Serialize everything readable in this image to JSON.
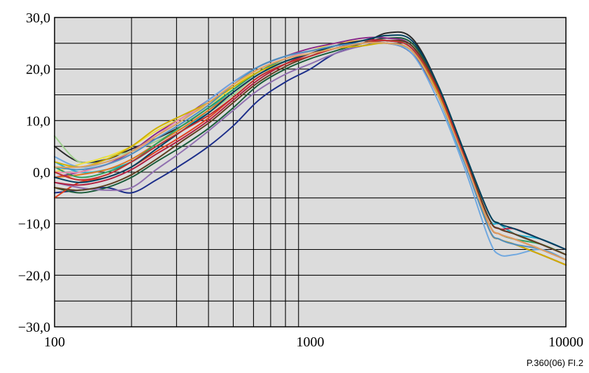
{
  "figure_ref": "P.360(06)  FI.2",
  "chart_data": {
    "type": "line",
    "title": "",
    "xlabel": "",
    "ylabel": "",
    "x_scale": "log",
    "xlim": [
      100,
      10000
    ],
    "ylim": [
      -30,
      30
    ],
    "grid": true,
    "legend": "none",
    "background_color": "#dcdcdc",
    "x_ticks": [
      {
        "value": 100,
        "label": "100"
      },
      {
        "value": 1000,
        "label": "1000"
      },
      {
        "value": 10000,
        "label": "10000"
      }
    ],
    "y_ticks": [
      {
        "value": 30,
        "label": "30,0"
      },
      {
        "value": 20,
        "label": "20,0"
      },
      {
        "value": 10,
        "label": "10,0"
      },
      {
        "value": 0,
        "label": "0,0"
      },
      {
        "value": -10,
        "label": "−10,0"
      },
      {
        "value": -20,
        "label": "−20,0"
      },
      {
        "value": -30,
        "label": "−30,0"
      }
    ],
    "x": [
      100,
      125,
      160,
      200,
      250,
      315,
      400,
      500,
      630,
      800,
      1000,
      1250,
      1600,
      2000,
      2500,
      3150,
      4000,
      5000,
      5500,
      6300,
      8000,
      10000
    ],
    "series": [
      {
        "color": "#1c2e8a",
        "values": [
          -4,
          -3.5,
          -3,
          -4,
          -1.5,
          1.5,
          5,
          9,
          14,
          17.5,
          20,
          23,
          24.5,
          25,
          23,
          15,
          3,
          -11,
          -13,
          -14,
          -16,
          -18
        ]
      },
      {
        "color": "#2a2a2a",
        "values": [
          5,
          2,
          2.5,
          4.5,
          6.5,
          9,
          12.5,
          16,
          19.5,
          21.5,
          23,
          24.5,
          25,
          27,
          26,
          17,
          3,
          -9,
          -11,
          -12,
          -14,
          -16
        ]
      },
      {
        "color": "#1a5c3a",
        "values": [
          -3,
          -4,
          -3,
          -1,
          2,
          5,
          8.5,
          12.5,
          17,
          20,
          22,
          23.5,
          25,
          26,
          25,
          17,
          4,
          -8,
          -10,
          -12,
          -14,
          -16
        ]
      },
      {
        "color": "#a0d090",
        "values": [
          7,
          2,
          3,
          4,
          6,
          8.5,
          11.5,
          15,
          19,
          21,
          23,
          24,
          25,
          25.5,
          24,
          15,
          3,
          -10,
          -12,
          -13,
          -15,
          -17
        ]
      },
      {
        "color": "#f0e040",
        "values": [
          0,
          1.5,
          3,
          5,
          8,
          10.5,
          13,
          16.5,
          20,
          22,
          23.5,
          25,
          25.5,
          25.5,
          24,
          16,
          3,
          -10,
          -12,
          -13,
          -15,
          -17
        ]
      },
      {
        "color": "#8a2a8a",
        "values": [
          -1,
          0,
          1.5,
          4,
          7.5,
          10.5,
          14,
          17.5,
          20.5,
          22.5,
          24,
          25,
          26,
          26,
          24.5,
          16,
          3,
          -9,
          -11,
          -12,
          -14,
          -16
        ]
      },
      {
        "color": "#e04020",
        "values": [
          -5,
          -2,
          -1,
          1,
          4,
          7,
          10.5,
          14.5,
          18.5,
          21,
          22.5,
          24,
          25,
          25.5,
          24,
          16,
          3,
          -11,
          -13,
          -14,
          -16,
          -18
        ]
      },
      {
        "color": "#20b0d0",
        "values": [
          2,
          0,
          0.5,
          2,
          5,
          8,
          12,
          16,
          19.5,
          21.5,
          23,
          24,
          25,
          25.5,
          24,
          15,
          2,
          -9,
          -10,
          -12,
          -13,
          -15
        ]
      },
      {
        "color": "#9070b0",
        "values": [
          -2,
          -3,
          -3.5,
          -3,
          0.5,
          4,
          8,
          12,
          16,
          19,
          21,
          23,
          24.5,
          25,
          23.5,
          15,
          3,
          -10,
          -12,
          -13,
          -15,
          -17
        ]
      },
      {
        "color": "#e07820",
        "values": [
          -1,
          -0.5,
          0.5,
          2.5,
          5.5,
          8.5,
          12,
          15.5,
          19,
          21.5,
          23,
          24.5,
          25,
          25.5,
          24,
          16,
          3,
          -10,
          -12,
          -13,
          -15,
          -17
        ]
      },
      {
        "color": "#70a8e0",
        "values": [
          3,
          1,
          2,
          4,
          7,
          10,
          14,
          17.5,
          20.5,
          22.5,
          23.5,
          24.5,
          25,
          25,
          23,
          14,
          1,
          -13,
          -16,
          -16,
          -15,
          -17
        ]
      },
      {
        "color": "#b02040",
        "values": [
          -2,
          -2.5,
          -1.5,
          0.5,
          3.5,
          6.5,
          10,
          14,
          18,
          21,
          23,
          24.5,
          25.5,
          25.5,
          24,
          16,
          3,
          -9,
          -11,
          -11,
          -13,
          -15
        ]
      },
      {
        "color": "#30a060",
        "values": [
          1,
          -1,
          0,
          2,
          5.5,
          9,
          12.5,
          16,
          19.5,
          22,
          23.5,
          24.5,
          25,
          25.5,
          24,
          16,
          3,
          -10,
          -12,
          -13,
          -14,
          -16
        ]
      },
      {
        "color": "#e890b0",
        "values": [
          0,
          0,
          1.5,
          3.5,
          7,
          10.5,
          13.5,
          17,
          20,
          22,
          23.5,
          24.5,
          25,
          25.5,
          24,
          16,
          3,
          -10,
          -12,
          -13,
          -15,
          -17
        ]
      },
      {
        "color": "#604020",
        "values": [
          -3,
          -3.5,
          -2.5,
          -0.5,
          2.5,
          6,
          9.5,
          13.5,
          17.5,
          20.5,
          22.5,
          24,
          25,
          25.5,
          24.5,
          16.5,
          3.5,
          -9,
          -11,
          -12,
          -14,
          -16
        ]
      },
      {
        "color": "#d0b000",
        "values": [
          2,
          1,
          2.5,
          5,
          8.5,
          11,
          13.5,
          16.5,
          19.5,
          21.5,
          23,
          24,
          24.5,
          25,
          23.5,
          15.5,
          2.5,
          -11,
          -13,
          -14,
          -16,
          -18
        ]
      },
      {
        "color": "#004060",
        "values": [
          -1,
          -2,
          -1,
          1,
          4.5,
          8,
          11.5,
          15.5,
          19,
          21.5,
          23,
          24.5,
          25.5,
          26.5,
          25.5,
          17,
          4,
          -8,
          -10,
          -11,
          -13,
          -15
        ]
      },
      {
        "color": "#c03030",
        "values": [
          0,
          -1.5,
          -0.5,
          2,
          5,
          8,
          11,
          14.5,
          18.5,
          21,
          22.5,
          24,
          25,
          25.5,
          24,
          16,
          3,
          -10,
          -12,
          -13,
          -15,
          -17
        ]
      },
      {
        "color": "#5090c0",
        "values": [
          1,
          0.5,
          1.5,
          3.5,
          6.5,
          9.5,
          13,
          17,
          20.5,
          22.5,
          23.5,
          24.5,
          25,
          25,
          23.5,
          15,
          2,
          -11,
          -13,
          -14,
          -15,
          -17
        ]
      },
      {
        "color": "#e0a060",
        "values": [
          1,
          1,
          2,
          4,
          7,
          10,
          13.5,
          17,
          20,
          22,
          23,
          24,
          25,
          25,
          23.5,
          15,
          2.5,
          -10,
          -12,
          -13,
          -15,
          -17
        ]
      }
    ]
  }
}
